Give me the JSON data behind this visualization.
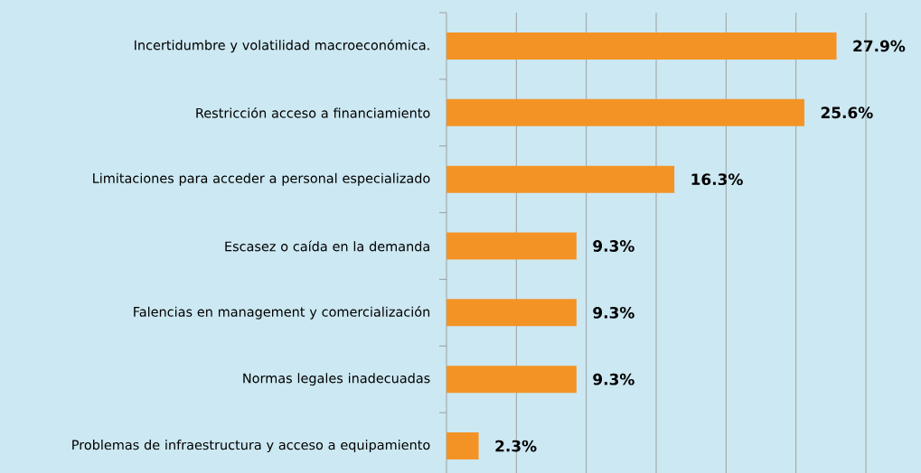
{
  "chart_data": {
    "type": "bar",
    "orientation": "horizontal",
    "categories": [
      "Incertidumbre y volatilidad macroeconómica.",
      "Restricción acceso a financiamiento",
      "Limitaciones para acceder a personal especializado",
      "Escasez o caída en la demanda",
      "Falencias en management y comercialización",
      "Normas legales inadecuadas",
      "Problemas de infraestructura y acceso a equipamiento"
    ],
    "values": [
      27.9,
      25.6,
      16.3,
      9.3,
      9.3,
      9.3,
      2.3
    ],
    "value_labels": [
      "27.9%",
      "25.6%",
      "16.3%",
      "9.3%",
      "9.3%",
      "9.3%",
      "2.3%"
    ],
    "color": "#f39325",
    "xlim": [
      0,
      30
    ],
    "xticks": [
      {
        "value": 5,
        "label": null
      },
      {
        "value": 10,
        "label": null
      },
      {
        "value": 15,
        "label": null
      },
      {
        "value": 20,
        "label": null
      },
      {
        "value": 25,
        "label": null
      },
      {
        "value": 30,
        "label": null
      }
    ],
    "grid": "x",
    "tick_labels": "y"
  }
}
